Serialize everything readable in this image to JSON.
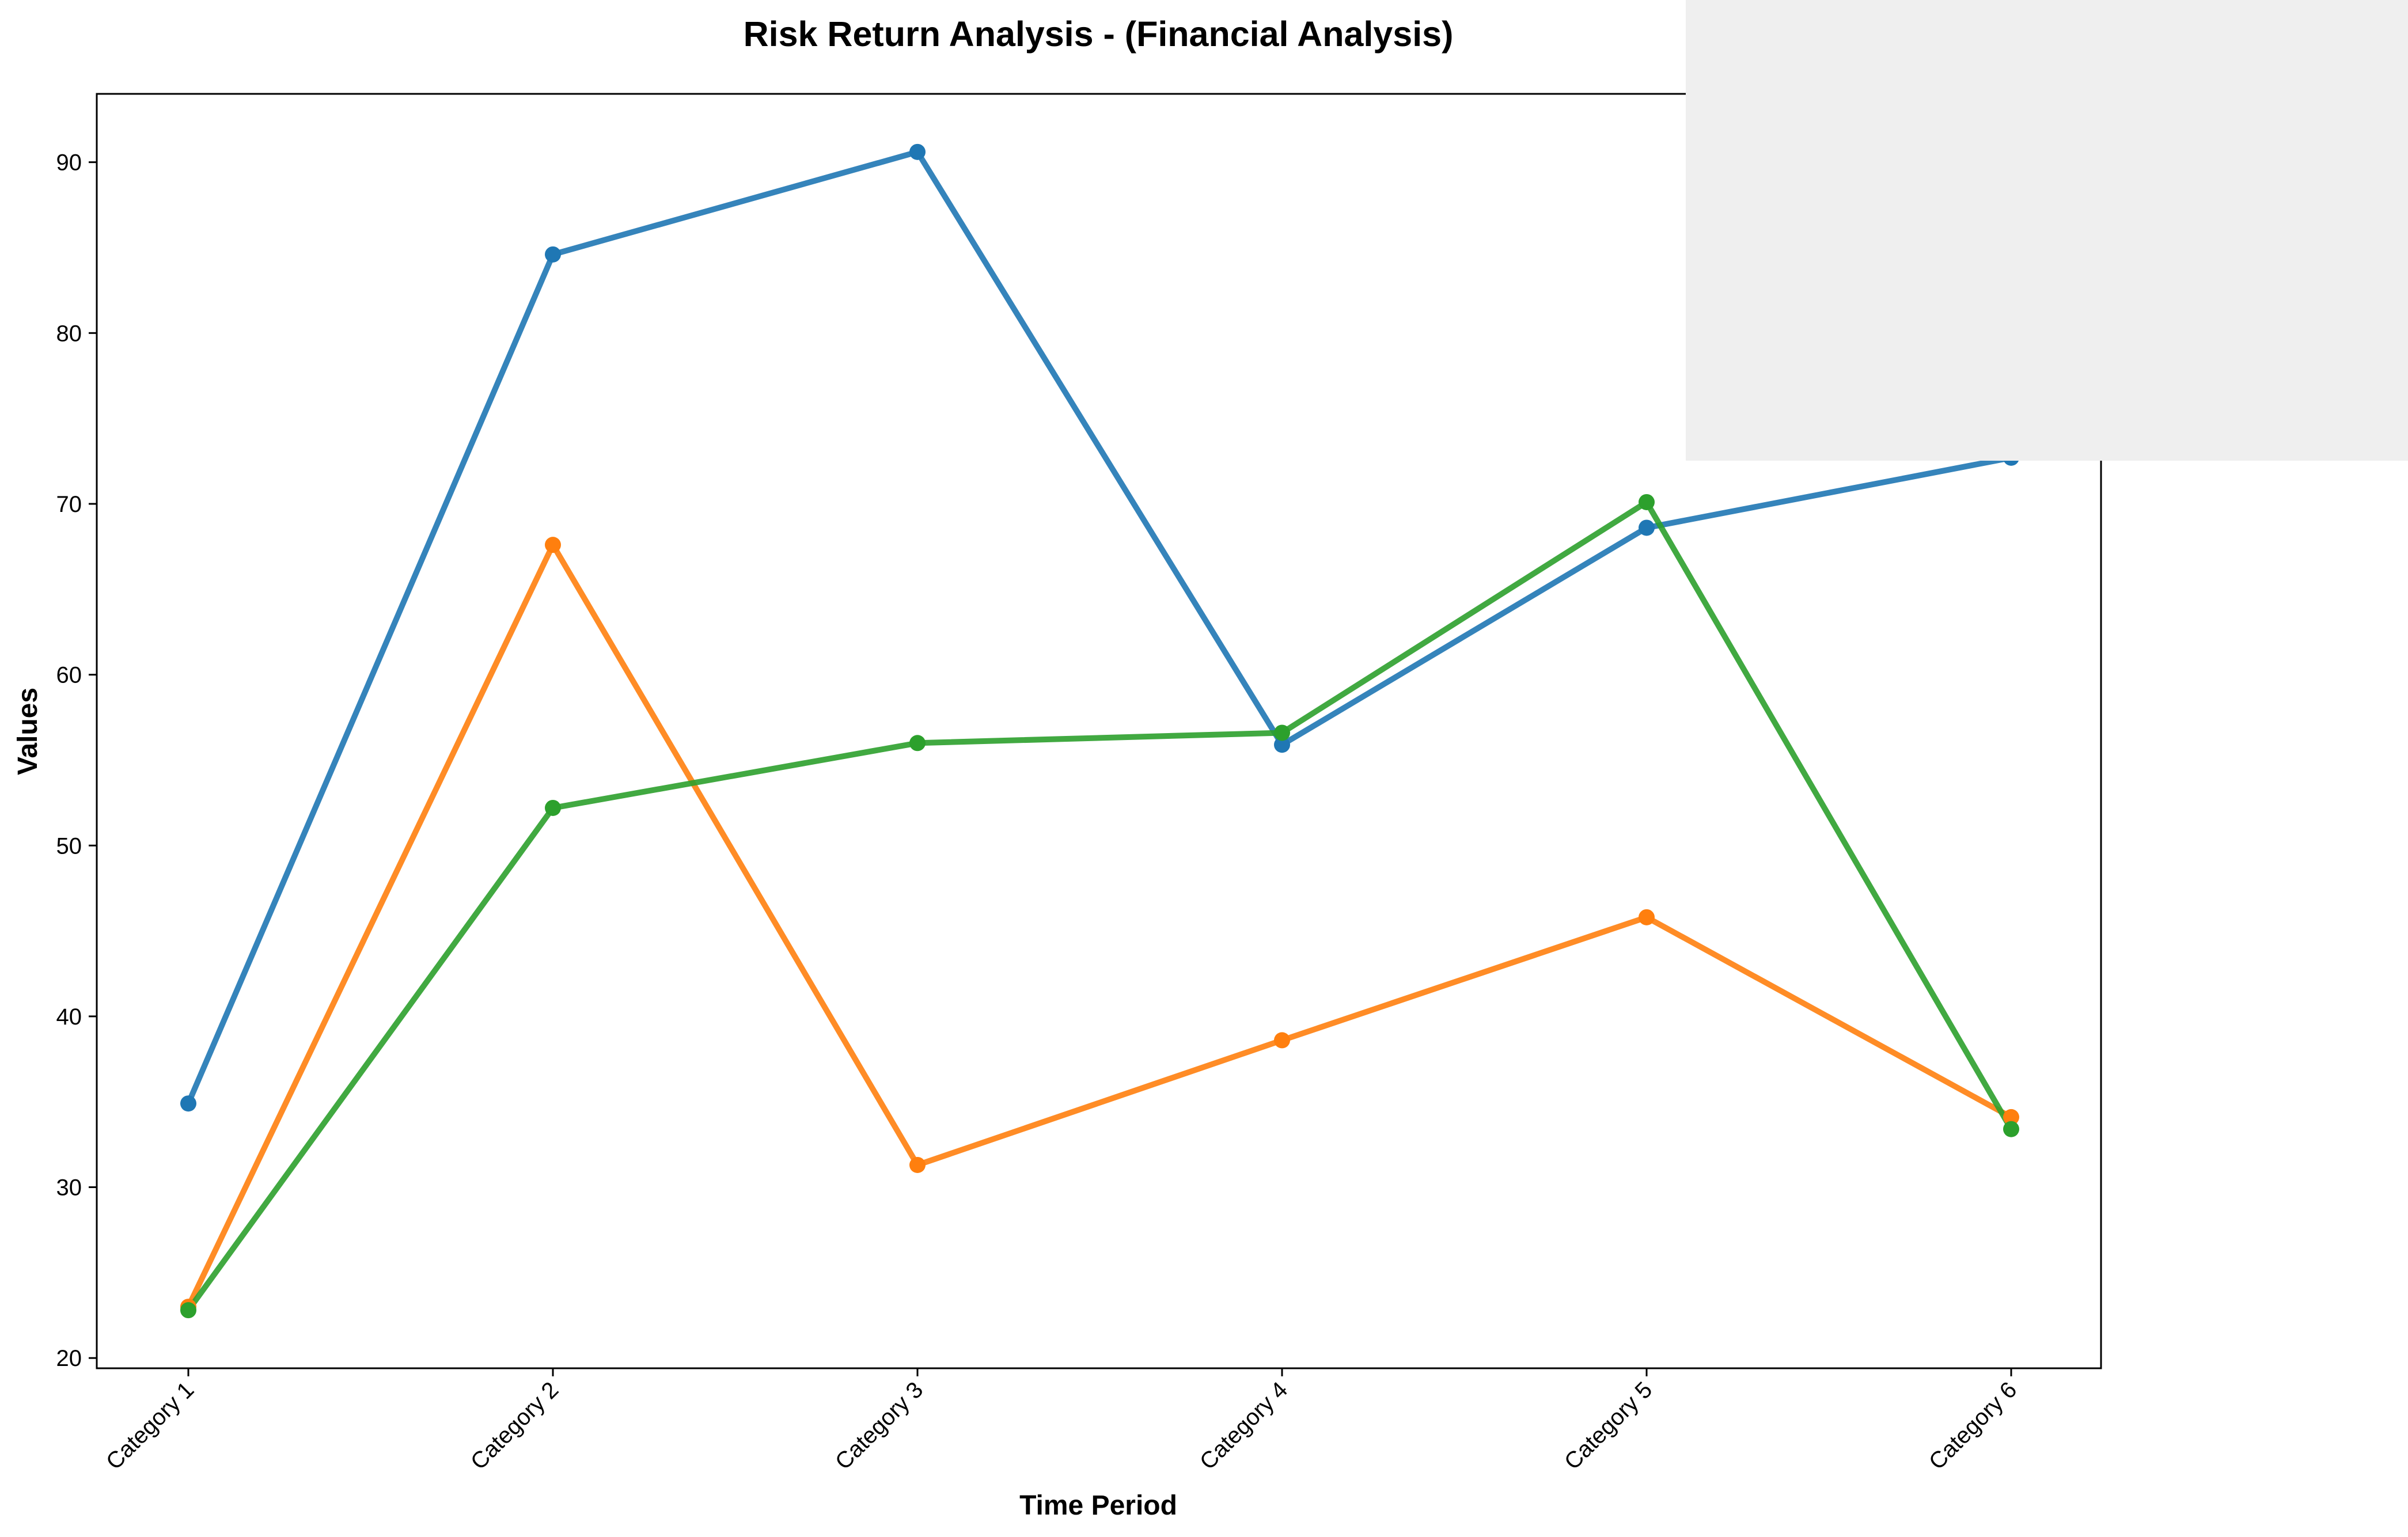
{
  "chart_data": {
    "type": "line",
    "title": "Risk Return Analysis - (Financial Analysis)",
    "xlabel": "Time Period",
    "ylabel": "Values",
    "categories": [
      "Category 1",
      "Category 2",
      "Category 3",
      "Category 4",
      "Category 5",
      "Category 6"
    ],
    "ylim": [
      19.4,
      94
    ],
    "yticks": [
      "20",
      "30",
      "40",
      "50",
      "60",
      "70",
      "80",
      "90"
    ],
    "grid": false,
    "legend": "top-right (obscured by a grey box)",
    "series": [
      {
        "color": "#1f77b4",
        "values": [
          34.9,
          84.6,
          90.6,
          55.9,
          68.6,
          72.7
        ]
      },
      {
        "color": "#ff7f0e",
        "values": [
          23.0,
          67.6,
          31.3,
          38.6,
          45.8,
          34.1
        ]
      },
      {
        "color": "#2ca02c",
        "values": [
          22.8,
          52.2,
          56.0,
          56.6,
          70.1,
          33.4
        ]
      }
    ],
    "overlay_box_color": "#efefef"
  }
}
